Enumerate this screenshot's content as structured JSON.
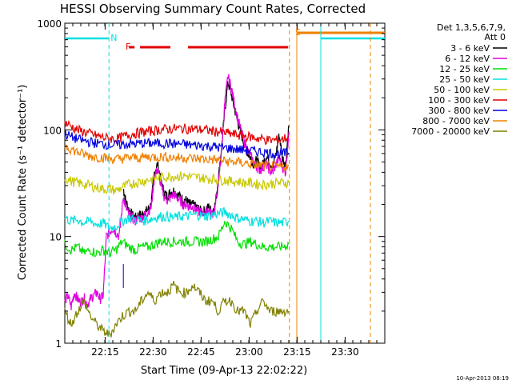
{
  "chart_data": {
    "type": "line",
    "title": "HESSI Observing Summary Count Rates, Corrected",
    "xlabel": "Start Time (09-Apr-13 22:02:22)",
    "ylabel": "Corrected Count Rate (s⁻¹ detector⁻¹)",
    "ylog": true,
    "ylim": [
      1,
      1000
    ],
    "xlim_min": [
      0,
      100
    ],
    "x_ticks": [
      {
        "label": "22:15",
        "min": 12.6
      },
      {
        "label": "22:30",
        "min": 27.6
      },
      {
        "label": "22:45",
        "min": 42.6
      },
      {
        "label": "23:00",
        "min": 57.6
      },
      {
        "label": "23:15",
        "min": 72.6
      },
      {
        "label": "23:30",
        "min": 87.6
      }
    ],
    "y_ticks": [
      1,
      10,
      100,
      1000
    ],
    "legend_header": [
      "Det 1,3,5,6,7,9,",
      "Att 0"
    ],
    "legend_position": "right",
    "series": [
      {
        "name": "3 - 6 keV",
        "color": "#000000",
        "x": [
          18.3,
          19,
          20,
          21,
          22,
          23,
          24,
          25,
          26,
          27,
          28,
          29,
          30,
          31,
          32,
          33,
          34,
          35,
          36,
          37,
          38,
          39,
          40,
          41,
          42,
          43,
          44,
          45,
          46,
          47,
          48,
          49,
          50,
          51,
          52,
          53,
          54,
          55,
          56,
          57,
          58,
          59,
          60,
          61,
          62,
          63,
          64,
          65,
          66,
          67,
          68,
          69,
          70
        ],
        "y": [
          28,
          22,
          18,
          16,
          15,
          16,
          16,
          17,
          18,
          20,
          40,
          48,
          34,
          26,
          24,
          26,
          27,
          25,
          24,
          22,
          22,
          20,
          20,
          19,
          18,
          17,
          18,
          19,
          17,
          20,
          35,
          70,
          150,
          280,
          220,
          160,
          120,
          95,
          75,
          62,
          55,
          48,
          52,
          45,
          48,
          58,
          50,
          46,
          60,
          90,
          55,
          48,
          110
        ]
      },
      {
        "name": "6 - 12 keV",
        "color": "#e000e0",
        "x": [
          0,
          1,
          2,
          3,
          4,
          5,
          6,
          7,
          8,
          9,
          10,
          11,
          12,
          13,
          14,
          15,
          16,
          17,
          18.3,
          19,
          20,
          21,
          22,
          23,
          24,
          25,
          26,
          27,
          28,
          29,
          30,
          31,
          32,
          33,
          34,
          35,
          36,
          37,
          38,
          39,
          40,
          41,
          42,
          43,
          44,
          45,
          46,
          47,
          48,
          49,
          50,
          51,
          52,
          53,
          54,
          55,
          56,
          57,
          58,
          59,
          60,
          61,
          62,
          63,
          64,
          65,
          66,
          67,
          68,
          69,
          70
        ],
        "y": [
          2.5,
          2.8,
          2.2,
          3.0,
          2.6,
          2.4,
          2.7,
          2.3,
          2.6,
          2.8,
          3.0,
          2.6,
          2.8,
          10,
          11,
          12,
          11,
          10,
          24,
          19,
          16,
          15,
          14,
          15,
          15,
          16,
          17,
          19,
          36,
          43,
          31,
          24,
          22,
          23,
          25,
          23,
          22,
          20,
          20,
          19,
          19,
          18,
          17,
          17,
          17,
          18,
          16,
          19,
          32,
          65,
          180,
          320,
          250,
          180,
          130,
          100,
          80,
          65,
          58,
          50,
          45,
          42,
          45,
          48,
          42,
          40,
          48,
          55,
          45,
          40,
          95
        ]
      },
      {
        "name": "12 - 25 keV",
        "color": "#00e000",
        "x": [
          0,
          2,
          4,
          6,
          8,
          10,
          12,
          14,
          16,
          18,
          20,
          22,
          24,
          26,
          28,
          30,
          32,
          34,
          36,
          38,
          40,
          42,
          44,
          46,
          48,
          50,
          52,
          54,
          56,
          58,
          60,
          62,
          64,
          66,
          68,
          70
        ],
        "y": [
          8.5,
          7.5,
          8,
          7,
          7.5,
          7,
          7.5,
          7,
          7.5,
          9,
          8,
          7.5,
          8,
          8,
          8.5,
          9,
          9,
          9,
          9,
          9,
          9,
          9,
          9,
          9.5,
          10,
          14,
          12,
          9,
          8.5,
          9,
          8.5,
          8,
          8,
          8,
          8,
          8.5
        ]
      },
      {
        "name": "25 - 50 keV",
        "color": "#00e0e0",
        "x": [
          0,
          2,
          4,
          6,
          8,
          10,
          12,
          14,
          16,
          18,
          20,
          22,
          24,
          26,
          28,
          30,
          32,
          34,
          36,
          38,
          40,
          42,
          44,
          46,
          48,
          50,
          52,
          54,
          56,
          58,
          60,
          62,
          64,
          66,
          68,
          70
        ],
        "y": [
          15,
          14,
          14.5,
          13.5,
          14,
          13,
          13.5,
          12,
          12.5,
          14,
          15,
          14.5,
          14,
          14.5,
          15,
          15.5,
          15.5,
          15,
          15.5,
          15.5,
          16,
          16,
          15.5,
          16,
          16.5,
          17,
          16,
          15,
          14.5,
          14,
          14,
          13.5,
          14,
          13.5,
          13.5,
          14
        ]
      },
      {
        "name": "50 - 100 keV",
        "color": "#c8c800",
        "x": [
          0,
          2,
          4,
          6,
          8,
          10,
          12,
          14,
          16,
          18,
          20,
          22,
          24,
          26,
          28,
          30,
          32,
          34,
          36,
          38,
          40,
          42,
          44,
          46,
          48,
          50,
          52,
          54,
          56,
          58,
          60,
          62,
          64,
          66,
          68,
          70
        ],
        "y": [
          36,
          33,
          32,
          31,
          30,
          29,
          28,
          28,
          27,
          29,
          31,
          32,
          33,
          34,
          35,
          36,
          36.5,
          37,
          37,
          37,
          36,
          36,
          35,
          35,
          34,
          34,
          33,
          33,
          32,
          32,
          31,
          31,
          31,
          32,
          32,
          32
        ]
      },
      {
        "name": "100 - 300 keV",
        "color": "#e00000",
        "x": [
          0,
          2,
          4,
          6,
          8,
          10,
          12,
          14,
          16,
          18,
          20,
          22,
          24,
          26,
          28,
          30,
          32,
          34,
          36,
          38,
          40,
          42,
          44,
          46,
          48,
          50,
          52,
          54,
          56,
          58,
          60,
          62,
          64,
          66,
          68,
          70
        ],
        "y": [
          118,
          108,
          100,
          96,
          92,
          88,
          85,
          83,
          82,
          86,
          90,
          93,
          95,
          97,
          99,
          101,
          102,
          103,
          103,
          103,
          102,
          101,
          100,
          98,
          96,
          94,
          92,
          90,
          88,
          86,
          84,
          82,
          80,
          80,
          82,
          86
        ]
      },
      {
        "name": "300 - 800 keV",
        "color": "#0000e0",
        "x": [
          0,
          2,
          4,
          6,
          8,
          10,
          12,
          14,
          16,
          18,
          20,
          22,
          24,
          26,
          28,
          30,
          32,
          34,
          36,
          38,
          40,
          42,
          44,
          46,
          48,
          50,
          52,
          54,
          56,
          58,
          60,
          62,
          64,
          66,
          68,
          70
        ],
        "y": [
          92,
          86,
          82,
          79,
          77,
          75,
          74,
          73,
          72,
          73,
          74,
          74,
          75,
          75,
          75,
          75,
          75,
          74,
          74,
          73,
          72,
          72,
          71,
          70,
          69,
          68,
          67,
          66,
          65,
          64,
          63,
          62,
          61,
          60,
          60,
          61
        ]
      },
      {
        "name": "800 - 7000 keV",
        "color": "#f08000",
        "x": [
          0,
          2,
          4,
          6,
          8,
          10,
          12,
          14,
          16,
          18,
          20,
          22,
          24,
          26,
          28,
          30,
          32,
          34,
          36,
          38,
          40,
          42,
          44,
          46,
          48,
          50,
          52,
          54,
          56,
          58,
          60,
          62,
          64,
          66,
          68,
          70
        ],
        "y": [
          72,
          66,
          62,
          59,
          57,
          56,
          55,
          54,
          53,
          54,
          55,
          55,
          55,
          56,
          56,
          56,
          56,
          55,
          55,
          55,
          54,
          54,
          53,
          53,
          52,
          51,
          50,
          50,
          49,
          48,
          47,
          46,
          46,
          45,
          45,
          46
        ]
      },
      {
        "name": "7000 - 20000 keV",
        "color": "#808000",
        "x": [
          0,
          2,
          4,
          6,
          8,
          10,
          12,
          14,
          16,
          18,
          20,
          22,
          24,
          26,
          28,
          30,
          32,
          34,
          36,
          38,
          40,
          42,
          44,
          46,
          48,
          50,
          52,
          54,
          56,
          58,
          60,
          62,
          64,
          66,
          68,
          70
        ],
        "y": [
          2,
          1.5,
          2,
          2.5,
          1.8,
          1.5,
          1.3,
          1.2,
          1.5,
          1.8,
          2,
          2,
          2.5,
          3,
          2.5,
          3,
          3,
          3.5,
          3,
          3,
          3.5,
          3,
          2.5,
          2.5,
          2,
          2.5,
          2.5,
          2,
          2,
          1.5,
          2,
          2.5,
          2,
          2,
          2,
          2
        ]
      }
    ],
    "flags": [
      {
        "label": "N",
        "color": "#00e0e0",
        "x_min": 13.8
      },
      {
        "label": "F",
        "color": "#e00000",
        "x_min": 18.5
      },
      {
        "label": "S",
        "color": "#f08000",
        "x_min": 71.5
      }
    ],
    "markers": {
      "night_segments": [
        [
          0,
          13.8
        ],
        [
          80,
          100
        ]
      ],
      "flare_segments": [
        [
          20,
          21.8
        ],
        [
          23.5,
          33
        ],
        [
          38.5,
          51.5
        ],
        [
          39,
          69.8
        ]
      ],
      "saa_segments": [
        [
          72.5,
          100
        ]
      ]
    }
  },
  "footer": {
    "timestamp": "10-Apr-2013 08:19"
  }
}
